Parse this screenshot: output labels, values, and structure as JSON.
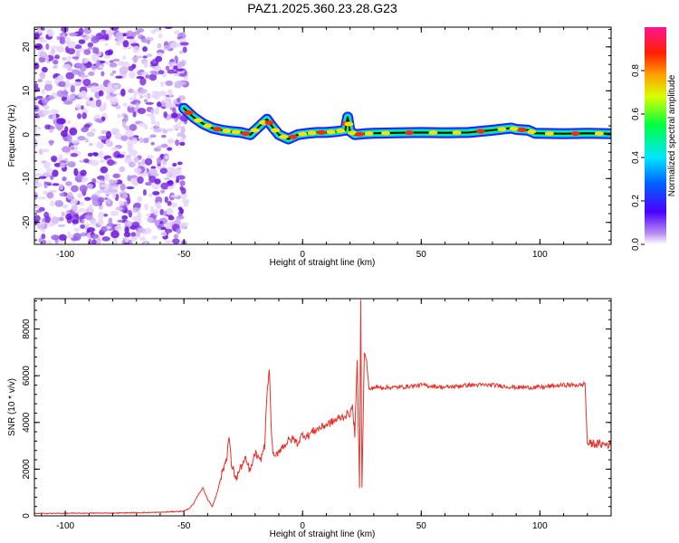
{
  "title": "PAZ1.2025.360.23.28.G23",
  "chart_data": [
    {
      "type": "heatmap",
      "title": "PAZ1.2025.360.23.28.G23",
      "xlabel": "Height of straight line (km)",
      "ylabel": "Frequency (Hz)",
      "xlim": [
        -113,
        130
      ],
      "ylim": [
        -25,
        24.5
      ],
      "x_ticks": [
        -100,
        -50,
        0,
        50,
        100
      ],
      "x_tick_labels": [
        "-100",
        "-50",
        "0",
        "50",
        "100"
      ],
      "y_ticks": [
        -20,
        -10,
        0,
        10,
        20
      ],
      "y_tick_labels": [
        "-20",
        "-10",
        "0",
        "10",
        "20"
      ],
      "noise_region_x": [
        -113,
        -49
      ],
      "ridge": {
        "x": [
          -50,
          -46,
          -42,
          -38,
          -34,
          -30,
          -26,
          -22,
          -18,
          -15,
          -13,
          -10,
          -6,
          -2,
          2,
          6,
          10,
          14,
          18,
          19,
          20,
          22,
          26,
          30,
          40,
          50,
          60,
          70,
          80,
          88,
          90,
          95,
          98,
          110,
          120,
          130
        ],
        "y": [
          6,
          4,
          2.5,
          1.5,
          1,
          0.7,
          0.5,
          0,
          2,
          3.5,
          2,
          0,
          -1,
          0,
          0.3,
          0.5,
          0.5,
          0.7,
          1,
          4,
          0.8,
          0,
          0.2,
          0.3,
          0.4,
          0.5,
          0.4,
          0.5,
          1,
          1.5,
          1.2,
          1,
          0.3,
          0.2,
          0.3,
          0.2
        ]
      },
      "colorbar": {
        "label": "Normalized spectral amplitude",
        "ticks": [
          0.0,
          0.2,
          0.4,
          0.6,
          0.8
        ],
        "tick_labels": [
          "0.0",
          "0.2",
          "0.4",
          "0.6",
          "0.8"
        ],
        "range": [
          0,
          1
        ],
        "colors": [
          "#ffffff",
          "#8a2be2",
          "#0000ff",
          "#00ffff",
          "#00ff00",
          "#ffff00",
          "#ff8000",
          "#ff0000",
          "#ff1493"
        ]
      }
    },
    {
      "type": "line",
      "title": "",
      "xlabel": "Height of straight line (km)",
      "ylabel": "SNR (10 * v/v)",
      "xlim": [
        -113,
        130
      ],
      "ylim": [
        0,
        9300
      ],
      "x_ticks": [
        -100,
        -50,
        0,
        50,
        100
      ],
      "x_tick_labels": [
        "-100",
        "-50",
        "0",
        "50",
        "100"
      ],
      "y_ticks": [
        0,
        2000,
        4000,
        6000,
        8000
      ],
      "y_tick_labels": [
        "0",
        "2000",
        "4000",
        "6000",
        "8000"
      ],
      "series": [
        {
          "name": "SNR",
          "color": "#e8302a",
          "x": [
            -113,
            -100,
            -80,
            -60,
            -50,
            -48,
            -46,
            -44,
            -42,
            -40,
            -38,
            -36,
            -34,
            -32,
            -31,
            -30,
            -28,
            -26,
            -24,
            -22,
            -20,
            -18,
            -16,
            -15,
            -14,
            -13,
            -12,
            -10,
            -8,
            -6,
            -4,
            -2,
            0,
            2,
            4,
            6,
            8,
            10,
            12,
            14,
            16,
            18,
            20,
            21,
            22,
            23,
            24,
            24.5,
            25,
            26,
            27,
            28,
            30,
            40,
            50,
            60,
            70,
            80,
            90,
            100,
            110,
            118,
            119,
            120,
            130
          ],
          "y": [
            100,
            110,
            120,
            150,
            200,
            300,
            500,
            900,
            1200,
            700,
            400,
            1000,
            1800,
            2500,
            3400,
            2200,
            1600,
            2100,
            2400,
            1900,
            2700,
            2300,
            3000,
            5200,
            6300,
            3200,
            2400,
            2800,
            3000,
            3200,
            3300,
            3100,
            3500,
            3400,
            3600,
            3700,
            3800,
            3900,
            4000,
            4100,
            4200,
            4300,
            4400,
            4700,
            3500,
            6600,
            1200,
            9300,
            1200,
            7000,
            6600,
            5400,
            5500,
            5500,
            5600,
            5500,
            5600,
            5600,
            5500,
            5500,
            5600,
            5600,
            5700,
            3100,
            3050
          ]
        }
      ]
    }
  ]
}
